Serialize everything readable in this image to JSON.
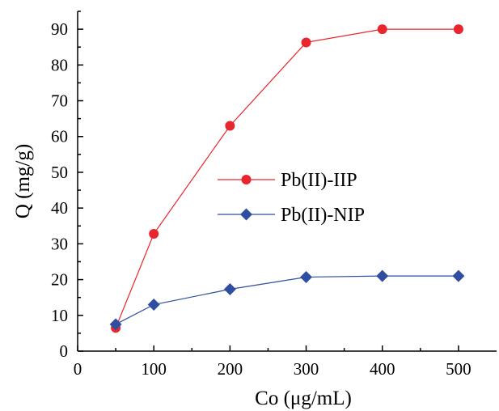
{
  "chart_data": {
    "type": "line",
    "xlabel": "Co (μg/mL)",
    "ylabel": "Q (mg/g)",
    "xlim": [
      0,
      550
    ],
    "ylim": [
      0,
      95
    ],
    "xticks": [
      0,
      100,
      200,
      300,
      400,
      500
    ],
    "xtick_labels": [
      "0",
      "100",
      "200",
      "300",
      "400",
      "500"
    ],
    "yticks": [
      0,
      10,
      20,
      30,
      40,
      50,
      60,
      70,
      80,
      90
    ],
    "ytick_labels": [
      "0",
      "10",
      "20",
      "30",
      "40",
      "50",
      "60",
      "70",
      "80",
      "90"
    ],
    "grid": false,
    "legend_position": "center-right",
    "series": [
      {
        "name": "Pb(II)-IIP",
        "marker": "circle",
        "color": "#e8262d",
        "x": [
          50,
          100,
          200,
          300,
          400,
          500
        ],
        "y": [
          6.5,
          32.8,
          63.0,
          86.3,
          90.0,
          90.0
        ]
      },
      {
        "name": "Pb(II)-NIP",
        "marker": "diamond",
        "color": "#2f4ea0",
        "x": [
          50,
          100,
          200,
          300,
          400,
          500
        ],
        "y": [
          7.5,
          13.0,
          17.3,
          20.7,
          21.0,
          21.0
        ]
      }
    ]
  }
}
